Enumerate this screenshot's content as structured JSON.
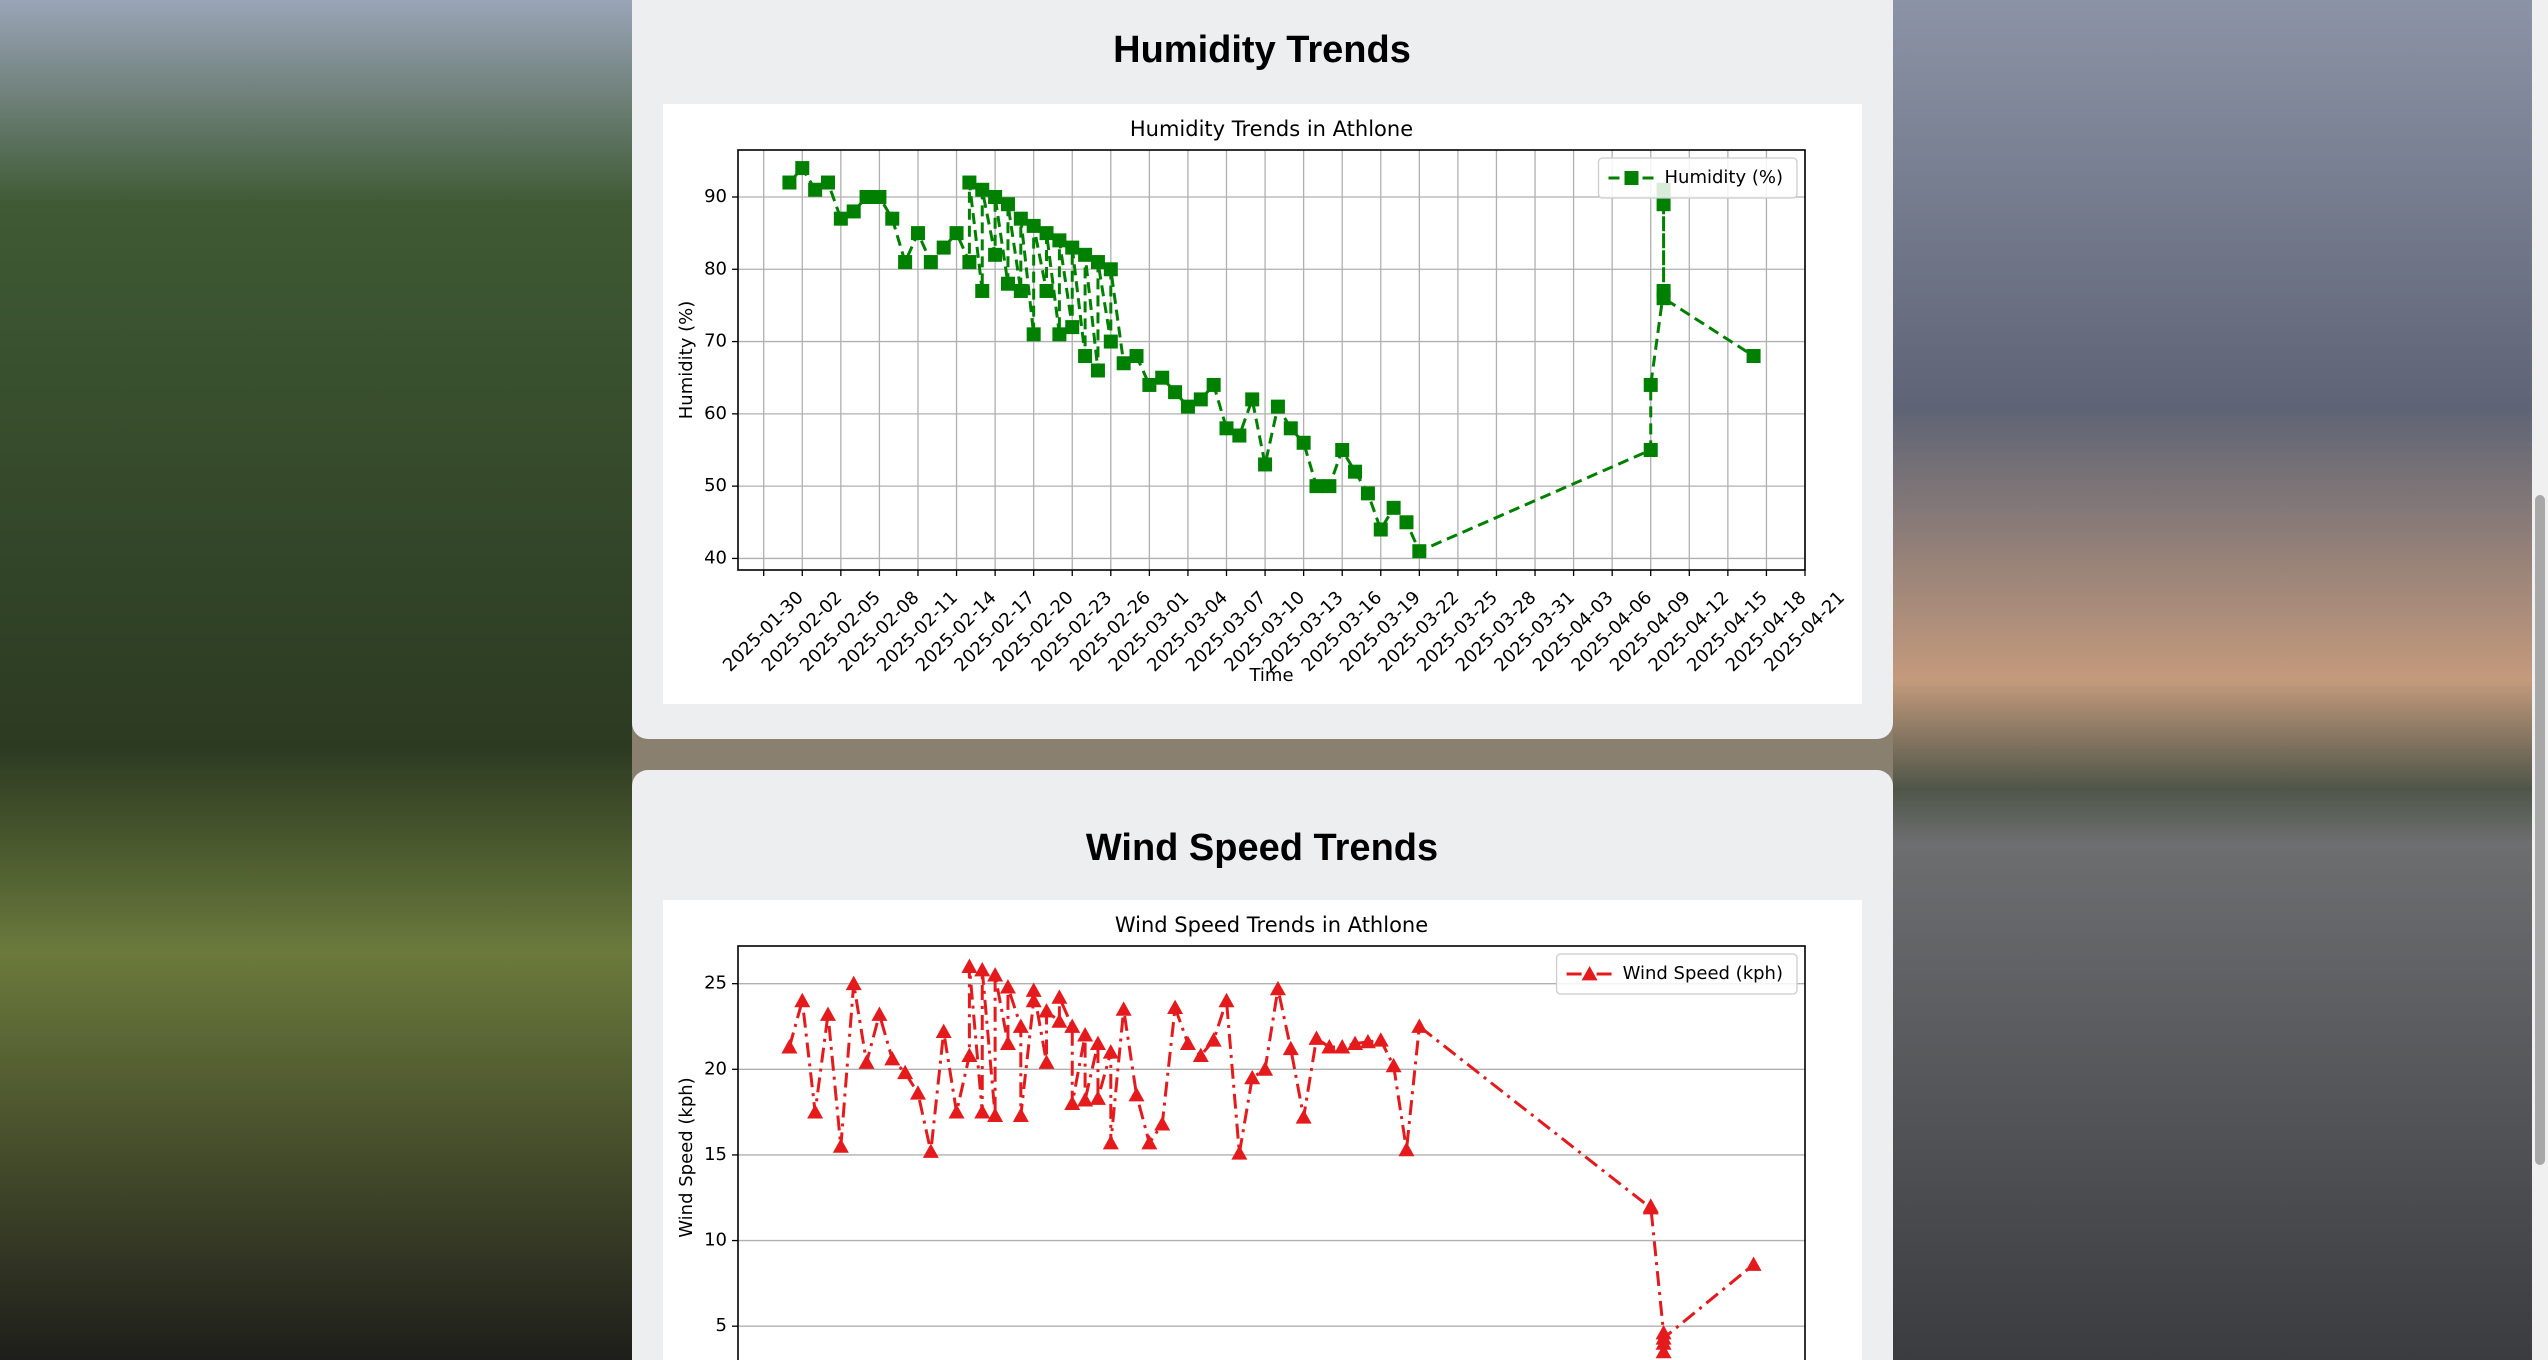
{
  "page": {
    "headings": [
      "Humidity Trends",
      "Wind Speed Trends"
    ]
  },
  "chart_data": [
    {
      "type": "line",
      "title": "Humidity Trends in Athlone",
      "xlabel": "Time",
      "ylabel": "Humidity (%)",
      "x": [
        "2025-02-01",
        "2025-02-02",
        "2025-02-03",
        "2025-02-04",
        "2025-02-05",
        "2025-02-06",
        "2025-02-07",
        "2025-02-08",
        "2025-02-09",
        "2025-02-10",
        "2025-02-11",
        "2025-02-12",
        "2025-02-13",
        "2025-02-14",
        "2025-02-15",
        "2025-02-15",
        "2025-02-16",
        "2025-02-16",
        "2025-02-17",
        "2025-02-17",
        "2025-02-18",
        "2025-02-18",
        "2025-02-19",
        "2025-02-19",
        "2025-02-20",
        "2025-02-20",
        "2025-02-21",
        "2025-02-21",
        "2025-02-22",
        "2025-02-22",
        "2025-02-23",
        "2025-02-23",
        "2025-02-24",
        "2025-02-24",
        "2025-02-25",
        "2025-02-25",
        "2025-02-26",
        "2025-02-26",
        "2025-02-27",
        "2025-02-28",
        "2025-03-01",
        "2025-03-02",
        "2025-03-03",
        "2025-03-04",
        "2025-03-05",
        "2025-03-06",
        "2025-03-07",
        "2025-03-08",
        "2025-03-09",
        "2025-03-10",
        "2025-03-11",
        "2025-03-12",
        "2025-03-13",
        "2025-03-14",
        "2025-03-15",
        "2025-03-16",
        "2025-03-17",
        "2025-03-18",
        "2025-03-19",
        "2025-03-20",
        "2025-03-21",
        "2025-03-22",
        "2025-04-09",
        "2025-04-09",
        "2025-04-10",
        "2025-04-10",
        "2025-04-10",
        "2025-04-10",
        "2025-04-17"
      ],
      "series": [
        {
          "name": "Humidity (%)",
          "color": "#008000",
          "marker": "square",
          "linestyle": "dashed",
          "values": [
            92,
            94,
            91,
            92,
            87,
            88,
            90,
            90,
            87,
            81,
            85,
            81,
            83,
            85,
            81,
            92,
            77,
            91,
            82,
            90,
            78,
            89,
            77,
            87,
            71,
            86,
            77,
            85,
            71,
            84,
            72,
            83,
            68,
            82,
            66,
            81,
            70,
            80,
            67,
            68,
            64,
            65,
            63,
            61,
            62,
            64,
            58,
            57,
            62,
            53,
            61,
            58,
            56,
            50,
            50,
            55,
            52,
            49,
            44,
            47,
            45,
            41,
            55,
            64,
            77,
            91,
            89,
            76,
            68
          ]
        }
      ],
      "xlim": [
        "2025-01-28",
        "2025-04-21"
      ],
      "ylim": [
        38.4,
        96.5
      ],
      "yticks": [
        40,
        50,
        60,
        70,
        80,
        90
      ],
      "xticks": [
        "2025-01-30",
        "2025-02-02",
        "2025-02-05",
        "2025-02-08",
        "2025-02-11",
        "2025-02-14",
        "2025-02-17",
        "2025-02-20",
        "2025-02-23",
        "2025-02-26",
        "2025-03-01",
        "2025-03-04",
        "2025-03-07",
        "2025-03-10",
        "2025-03-13",
        "2025-03-16",
        "2025-03-19",
        "2025-03-22",
        "2025-03-25",
        "2025-03-28",
        "2025-03-31",
        "2025-04-03",
        "2025-04-06",
        "2025-04-09",
        "2025-04-12",
        "2025-04-15",
        "2025-04-18",
        "2025-04-21"
      ],
      "grid": true,
      "legend": "upper right"
    },
    {
      "type": "line",
      "title": "Wind Speed Trends in Athlone",
      "ylabel": "Wind Speed (kph)",
      "x": [
        "2025-02-01",
        "2025-02-02",
        "2025-02-03",
        "2025-02-04",
        "2025-02-05",
        "2025-02-06",
        "2025-02-07",
        "2025-02-08",
        "2025-02-09",
        "2025-02-10",
        "2025-02-11",
        "2025-02-12",
        "2025-02-13",
        "2025-02-14",
        "2025-02-15",
        "2025-02-15",
        "2025-02-16",
        "2025-02-16",
        "2025-02-17",
        "2025-02-17",
        "2025-02-18",
        "2025-02-18",
        "2025-02-19",
        "2025-02-19",
        "2025-02-20",
        "2025-02-20",
        "2025-02-21",
        "2025-02-21",
        "2025-02-22",
        "2025-02-22",
        "2025-02-23",
        "2025-02-23",
        "2025-02-24",
        "2025-02-24",
        "2025-02-25",
        "2025-02-25",
        "2025-02-26",
        "2025-02-26",
        "2025-02-27",
        "2025-02-28",
        "2025-03-01",
        "2025-03-02",
        "2025-03-03",
        "2025-03-04",
        "2025-03-05",
        "2025-03-06",
        "2025-03-07",
        "2025-03-08",
        "2025-03-09",
        "2025-03-10",
        "2025-03-11",
        "2025-03-12",
        "2025-03-13",
        "2025-03-14",
        "2025-03-15",
        "2025-03-16",
        "2025-03-17",
        "2025-03-18",
        "2025-03-19",
        "2025-03-20",
        "2025-03-21",
        "2025-03-22",
        "2025-04-09",
        "2025-04-09",
        "2025-04-10",
        "2025-04-10",
        "2025-04-10",
        "2025-04-10",
        "2025-04-17"
      ],
      "series": [
        {
          "name": "Wind Speed (kph)",
          "color": "#e41a1c",
          "marker": "triangle",
          "linestyle": "dashdot",
          "values": [
            21.3,
            24,
            17.5,
            23.2,
            15.5,
            25,
            20.4,
            23.2,
            20.6,
            19.8,
            18.6,
            15.2,
            22.2,
            17.5,
            20.8,
            26,
            17.5,
            25.8,
            17.3,
            25.5,
            21.5,
            24.8,
            22.5,
            17.3,
            24,
            24.6,
            20.4,
            23.4,
            22.8,
            24.2,
            22.5,
            18,
            22,
            18.2,
            21.5,
            18.3,
            21,
            15.7,
            23.5,
            18.5,
            15.7,
            16.8,
            23.6,
            21.5,
            20.8,
            21.7,
            24,
            15.1,
            19.5,
            20,
            24.7,
            21.2,
            17.2,
            21.8,
            21.3,
            21.3,
            21.5,
            21.6,
            21.7,
            20.2,
            15.3,
            22.5,
            11.9,
            12,
            4.6,
            3.5,
            4,
            4.3,
            8.6
          ]
        }
      ],
      "xlim": [
        "2025-01-28",
        "2025-04-21"
      ],
      "ylim": [
        2.5,
        27.2
      ],
      "yticks": [
        5,
        10,
        15,
        20,
        25
      ],
      "grid": true,
      "legend": "upper right"
    }
  ]
}
